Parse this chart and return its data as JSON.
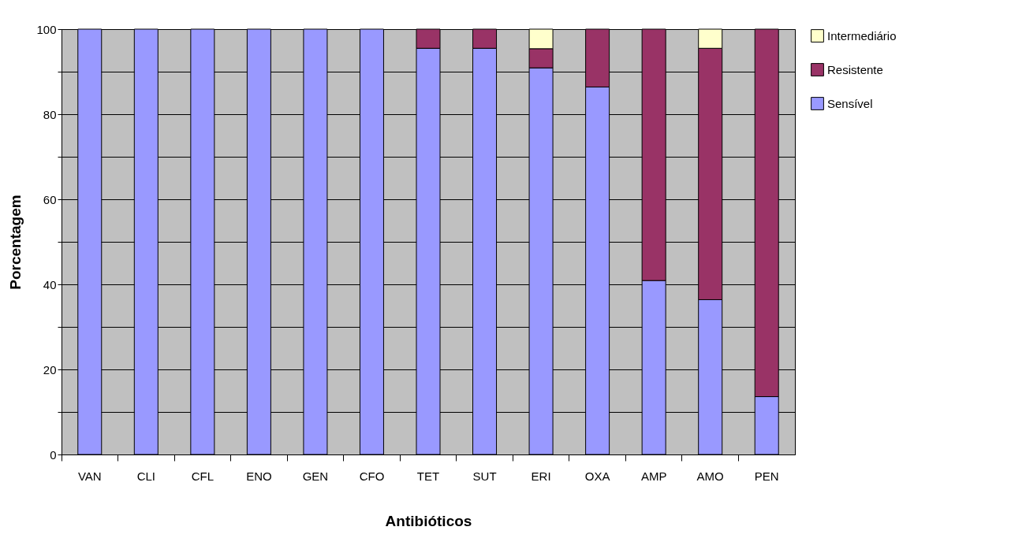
{
  "chart_data": {
    "type": "bar",
    "stacked": true,
    "xlabel": "Antibióticos",
    "ylabel": "Porcentagem",
    "categories": [
      "VAN",
      "CLI",
      "CFL",
      "ENO",
      "GEN",
      "CFO",
      "TET",
      "SUT",
      "ERI",
      "OXA",
      "AMP",
      "AMO",
      "PEN"
    ],
    "series": [
      {
        "name": "Sensível",
        "color": "#9999ff",
        "values": [
          100,
          100,
          100,
          100,
          100,
          100,
          95.5,
          95.5,
          90.9,
          86.4,
          40.9,
          36.4,
          13.6
        ]
      },
      {
        "name": "Resistente",
        "color": "#993366",
        "values": [
          null,
          null,
          null,
          null,
          null,
          null,
          4.5,
          4.5,
          4.5,
          13.6,
          59.1,
          59.1,
          86.4
        ]
      },
      {
        "name": "Intermediário",
        "color": "#ffffcc",
        "values": [
          null,
          null,
          null,
          null,
          null,
          null,
          null,
          null,
          4.6,
          null,
          null,
          4.5,
          null
        ]
      }
    ],
    "ylim": [
      0,
      100
    ],
    "yticks": [
      0,
      {
        "value": 10,
        "label": null
      },
      20,
      {
        "value": 30,
        "label": null
      },
      40,
      {
        "value": 50,
        "label": null
      },
      60,
      {
        "value": 70,
        "label": null
      },
      80,
      {
        "value": 90,
        "label": null
      },
      100
    ],
    "grid": "y",
    "legend": "right"
  }
}
